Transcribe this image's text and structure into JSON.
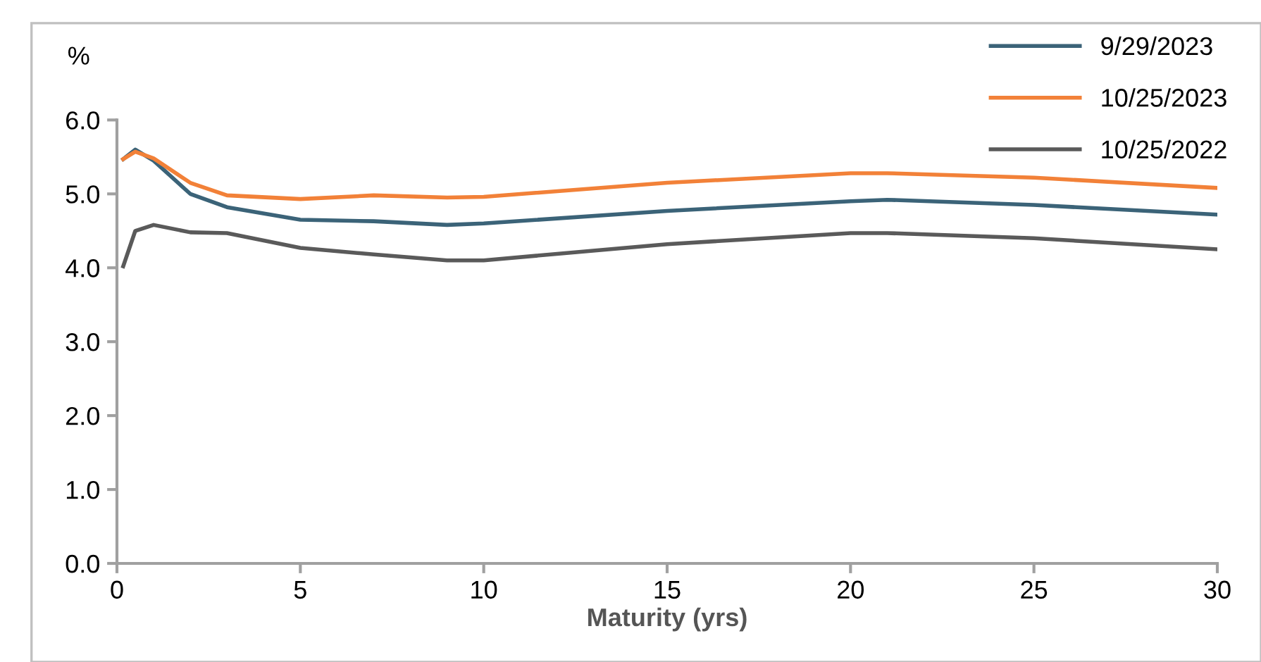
{
  "chart_data": {
    "type": "line",
    "ylabel": "%",
    "xlabel": "Maturity (yrs)",
    "xlim": [
      0,
      30
    ],
    "xticks": [
      0,
      5,
      10,
      15,
      20,
      25,
      30
    ],
    "ylim": [
      0,
      6
    ],
    "yticks": [
      {
        "value": 0,
        "label": "0.0"
      },
      {
        "value": 1,
        "label": "1.0"
      },
      {
        "value": 2,
        "label": "2.0"
      },
      {
        "value": 3,
        "label": "3.0"
      },
      {
        "value": 4,
        "label": "4.0"
      },
      {
        "value": 5,
        "label": "5.0"
      },
      {
        "value": 6,
        "label": "6.0"
      }
    ],
    "grid": false,
    "legend": "top right",
    "marker": "none",
    "line_style": "solid",
    "x": [
      0.17,
      0.5,
      1,
      2,
      3,
      5,
      7,
      9,
      10,
      15,
      20,
      21,
      25,
      30
    ],
    "series": [
      {
        "name": "9/29/2023",
        "color": "#3b6378",
        "values": [
          5.47,
          5.6,
          5.45,
          5.0,
          4.82,
          4.65,
          4.63,
          4.58,
          4.6,
          4.77,
          4.9,
          4.92,
          4.85,
          4.72
        ]
      },
      {
        "name": "10/25/2023",
        "color": "#f28138",
        "values": [
          5.47,
          5.57,
          5.48,
          5.15,
          4.98,
          4.93,
          4.98,
          4.95,
          4.96,
          5.15,
          5.28,
          5.28,
          5.22,
          5.08
        ]
      },
      {
        "name": "10/25/2022",
        "color": "#5a5a5a",
        "values": [
          4.02,
          4.5,
          4.58,
          4.48,
          4.47,
          4.27,
          4.18,
          4.1,
          4.1,
          4.32,
          4.47,
          4.47,
          4.4,
          4.25
        ]
      }
    ]
  }
}
